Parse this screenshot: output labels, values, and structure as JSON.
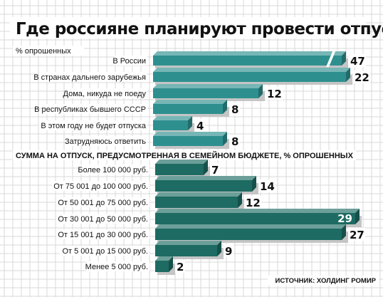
{
  "chart_data": [
    {
      "type": "bar",
      "orientation": "horizontal",
      "title": "Где россияне планируют провести отпуск",
      "subtitle": "% опрошенных",
      "categories": [
        "В России",
        "В странах дальнего зарубежья",
        "Дома, никуда не поеду",
        "В республиках бывшего СССР",
        "В этом году не будет отпуска",
        "Затрудняюсь ответить"
      ],
      "values": [
        47,
        22,
        12,
        8,
        4,
        8
      ],
      "value_labels": [
        "47",
        "22",
        "12",
        "8",
        "4",
        "8"
      ],
      "bar_color": "#2e8f8f",
      "broken_axis_on_max": true
    },
    {
      "type": "bar",
      "orientation": "horizontal",
      "title": "СУММА НА ОТПУСК, ПРЕДУСМОТРЕННАЯ В СЕМЕЙНОМ БЮДЖЕТЕ, % ОПРОШЕННЫХ",
      "categories": [
        "Более 100 000 руб.",
        "От 75 001 до 100 000 руб.",
        "От 50 001 до 75 000 руб.",
        "От 30 001 до 50 000 руб.",
        "От 15 001 до 30 000 руб.",
        "От 5 001 до 15 000 руб.",
        "Менее 5 000 руб."
      ],
      "values": [
        7,
        14,
        12,
        29,
        27,
        9,
        2
      ],
      "value_labels": [
        "7",
        "14",
        "12",
        "29",
        "27",
        "9",
        "2"
      ],
      "bar_color": "#1d6b62"
    }
  ],
  "source": "ИСТОЧНИК: ХОЛДИНГ РОМИР",
  "colors": {
    "grid": "#d9d9d9",
    "shadow": "#c5c5c5",
    "text": "#111111"
  }
}
